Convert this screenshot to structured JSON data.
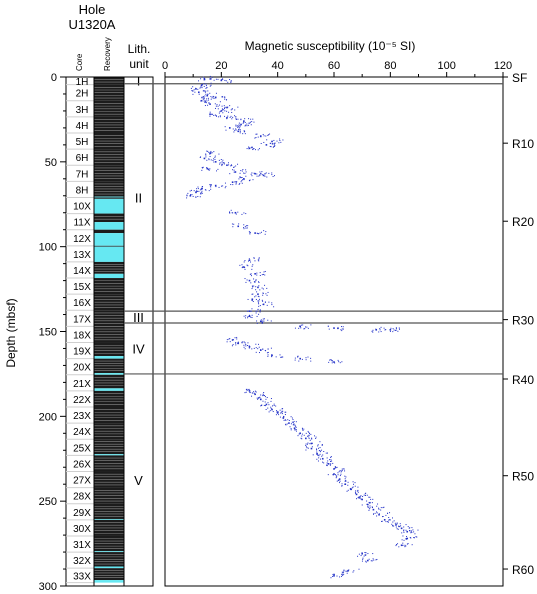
{
  "header": {
    "hole_title": "Hole",
    "hole_id": "U1320A",
    "core_col_label": "Core",
    "recovery_col_label": "Recovery",
    "lith_label_1": "Lith.",
    "lith_label_2": "unit"
  },
  "colors": {
    "recovered": "#1c1c1c",
    "gap": "#66e8f2",
    "points": "#2433c8",
    "boundary": "#555555",
    "grid_row": "#cfcfcf"
  },
  "chart_data": {
    "type": "scatter",
    "title": "",
    "xlabel": "Magnetic susceptibility (10⁻⁵ SI)",
    "ylabel": "Depth (mbsf)",
    "xlim": [
      0,
      120
    ],
    "ylim": [
      300,
      0
    ],
    "x_ticks": [
      "0",
      "20",
      "40",
      "60",
      "80",
      "100",
      "120"
    ],
    "x_tick_values": [
      0,
      20,
      40,
      60,
      80,
      100,
      120
    ],
    "y_ticks": [
      "0",
      "50",
      "100",
      "150",
      "200",
      "250",
      "300"
    ],
    "y_tick_values": [
      0,
      50,
      100,
      150,
      200,
      250,
      300
    ],
    "grid": false,
    "cores": [
      {
        "name": "1H",
        "top": 0,
        "bottom": 4.5,
        "recovered": 4.5
      },
      {
        "name": "2H",
        "top": 4.5,
        "bottom": 14,
        "recovered": 9.5
      },
      {
        "name": "3H",
        "top": 14,
        "bottom": 23.5,
        "recovered": 9.5
      },
      {
        "name": "4H",
        "top": 23.5,
        "bottom": 33,
        "recovered": 9.5
      },
      {
        "name": "5H",
        "top": 33,
        "bottom": 42.5,
        "recovered": 9.5
      },
      {
        "name": "6H",
        "top": 42.5,
        "bottom": 52,
        "recovered": 9.5
      },
      {
        "name": "7H",
        "top": 52,
        "bottom": 61.5,
        "recovered": 9.5
      },
      {
        "name": "8H",
        "top": 61.5,
        "bottom": 71,
        "recovered": 9.0
      },
      {
        "name": "10X",
        "top": 71,
        "bottom": 80.5,
        "recovered": 0.8
      },
      {
        "name": "11X",
        "top": 80.5,
        "bottom": 90,
        "recovered": 5.0
      },
      {
        "name": "12X",
        "top": 90,
        "bottom": 99.5,
        "recovered": 2.0
      },
      {
        "name": "13X",
        "top": 99.5,
        "bottom": 109,
        "recovered": 0.5
      },
      {
        "name": "14X",
        "top": 109,
        "bottom": 118.5,
        "recovered": 7.0
      },
      {
        "name": "15X",
        "top": 118.5,
        "bottom": 128,
        "recovered": 9.5
      },
      {
        "name": "16X",
        "top": 128,
        "bottom": 137.5,
        "recovered": 9.5
      },
      {
        "name": "17X",
        "top": 137.5,
        "bottom": 147,
        "recovered": 9.3
      },
      {
        "name": "18X",
        "top": 147,
        "bottom": 156.5,
        "recovered": 9.5
      },
      {
        "name": "19X",
        "top": 156.5,
        "bottom": 166,
        "recovered": 8.0
      },
      {
        "name": "20X",
        "top": 166,
        "bottom": 175.5,
        "recovered": 8.5
      },
      {
        "name": "21X",
        "top": 175.5,
        "bottom": 185,
        "recovered": 8.0
      },
      {
        "name": "22X",
        "top": 185,
        "bottom": 194.5,
        "recovered": 9.5
      },
      {
        "name": "23X",
        "top": 194.5,
        "bottom": 204,
        "recovered": 9.5
      },
      {
        "name": "24X",
        "top": 204,
        "bottom": 213.5,
        "recovered": 9.5
      },
      {
        "name": "25X",
        "top": 213.5,
        "bottom": 223,
        "recovered": 8.8
      },
      {
        "name": "26X",
        "top": 223,
        "bottom": 232.5,
        "recovered": 9.5
      },
      {
        "name": "27X",
        "top": 232.5,
        "bottom": 242,
        "recovered": 9.5
      },
      {
        "name": "28X",
        "top": 242,
        "bottom": 251.5,
        "recovered": 9.5
      },
      {
        "name": "29X",
        "top": 251.5,
        "bottom": 261,
        "recovered": 9.0
      },
      {
        "name": "30X",
        "top": 261,
        "bottom": 270.5,
        "recovered": 9.5
      },
      {
        "name": "31X",
        "top": 270.5,
        "bottom": 280,
        "recovered": 9.0
      },
      {
        "name": "32X",
        "top": 280,
        "bottom": 289.5,
        "recovered": 8.5
      },
      {
        "name": "33X",
        "top": 289.5,
        "bottom": 298,
        "recovered": 7.0
      }
    ],
    "lith_units": [
      {
        "name": "I",
        "top": 0,
        "bottom": 4
      },
      {
        "name": "II",
        "top": 4,
        "bottom": 138
      },
      {
        "name": "III",
        "top": 138,
        "bottom": 145
      },
      {
        "name": "IV",
        "top": 145,
        "bottom": 175
      },
      {
        "name": "V",
        "top": 175,
        "bottom": 300
      }
    ],
    "boundaries": [
      4,
      138,
      145,
      175
    ],
    "reflectors": [
      {
        "label": "SF",
        "depth": 0
      },
      {
        "label": "R10",
        "depth": 39
      },
      {
        "label": "R20",
        "depth": 85
      },
      {
        "label": "R30",
        "depth": 143
      },
      {
        "label": "R40",
        "depth": 178
      },
      {
        "label": "R50",
        "depth": 235
      },
      {
        "label": "R60",
        "depth": 290
      }
    ],
    "series": [
      {
        "points": [
          [
            14,
            1
          ],
          [
            20,
            2
          ],
          [
            13,
            5
          ],
          [
            11,
            7
          ],
          [
            12,
            9
          ],
          [
            15,
            11
          ],
          [
            18,
            12
          ],
          [
            13,
            14
          ],
          [
            16,
            16
          ],
          [
            22,
            18
          ],
          [
            20,
            20
          ],
          [
            16,
            22
          ],
          [
            22,
            24
          ],
          [
            28,
            26
          ],
          [
            27,
            28
          ],
          [
            23,
            30
          ],
          [
            26,
            32
          ],
          [
            34,
            35
          ],
          [
            38,
            38
          ],
          [
            36,
            40
          ],
          [
            30,
            42
          ],
          [
            16,
            45
          ],
          [
            14,
            48
          ],
          [
            18,
            50
          ],
          [
            22,
            52
          ],
          [
            15,
            54
          ],
          [
            25,
            56
          ],
          [
            32,
            57
          ],
          [
            35,
            58
          ],
          [
            28,
            60
          ],
          [
            24,
            62
          ],
          [
            18,
            64
          ],
          [
            13,
            66
          ],
          [
            11,
            68
          ],
          [
            9,
            70
          ],
          [
            25,
            80
          ],
          [
            26,
            88
          ],
          [
            32,
            92
          ],
          [
            30,
            108
          ],
          [
            28,
            112
          ],
          [
            32,
            116
          ],
          [
            30,
            120
          ],
          [
            33,
            124
          ],
          [
            33,
            128
          ],
          [
            31,
            131
          ],
          [
            35,
            134
          ],
          [
            30,
            138
          ],
          [
            30,
            141
          ],
          [
            34,
            144
          ],
          [
            48,
            147
          ],
          [
            60,
            148
          ],
          [
            75,
            149
          ],
          [
            80,
            149
          ],
          [
            24,
            155
          ],
          [
            26,
            157
          ],
          [
            30,
            159
          ],
          [
            34,
            161
          ],
          [
            38,
            164
          ],
          [
            48,
            166
          ],
          [
            60,
            168
          ],
          [
            30,
            185
          ],
          [
            32,
            187
          ],
          [
            34,
            190
          ],
          [
            36,
            193
          ],
          [
            38,
            196
          ],
          [
            40,
            198
          ],
          [
            42,
            201
          ],
          [
            44,
            204
          ],
          [
            46,
            207
          ],
          [
            48,
            210
          ],
          [
            50,
            213
          ],
          [
            52,
            216
          ],
          [
            52,
            219
          ],
          [
            54,
            222
          ],
          [
            56,
            225
          ],
          [
            58,
            228
          ],
          [
            60,
            231
          ],
          [
            60,
            234
          ],
          [
            62,
            237
          ],
          [
            64,
            240
          ],
          [
            66,
            243
          ],
          [
            68,
            246
          ],
          [
            70,
            249
          ],
          [
            72,
            252
          ],
          [
            74,
            255
          ],
          [
            76,
            258
          ],
          [
            78,
            261
          ],
          [
            82,
            264
          ],
          [
            84,
            266
          ],
          [
            86,
            268
          ],
          [
            86,
            272
          ],
          [
            84,
            276
          ],
          [
            70,
            281
          ],
          [
            72,
            285
          ],
          [
            65,
            291
          ],
          [
            60,
            294
          ]
        ]
      }
    ]
  }
}
